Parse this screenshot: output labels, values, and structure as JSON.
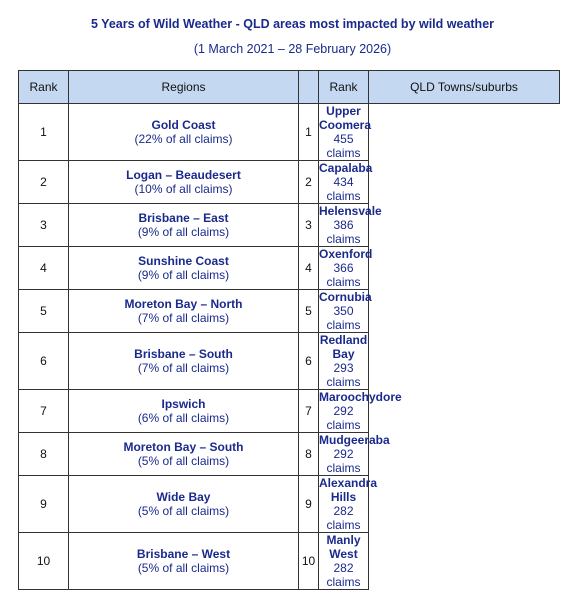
{
  "title": "5 Years of Wild Weather - QLD areas most impacted by wild weather",
  "subtitle": "(1 March 2021 – 28 February 2026)",
  "headers": {
    "rank_left": "Rank",
    "regions": "Regions",
    "rank_right": "Rank",
    "towns": "QLD Towns/suburbs"
  },
  "rows": [
    {
      "rank_left": "1",
      "region": "Gold Coast",
      "region_share": "(22% of all claims)",
      "rank_right": "1",
      "town": "Upper Coomera",
      "town_claims": "455 claims"
    },
    {
      "rank_left": "2",
      "region": "Logan – Beaudesert",
      "region_share": "(10% of all claims)",
      "rank_right": "2",
      "town": "Capalaba",
      "town_claims": "434 claims"
    },
    {
      "rank_left": "3",
      "region": "Brisbane – East",
      "region_share": "(9% of all claims)",
      "rank_right": "3",
      "town": "Helensvale",
      "town_claims": "386 claims"
    },
    {
      "rank_left": "4",
      "region": "Sunshine Coast",
      "region_share": "(9% of all claims)",
      "rank_right": "4",
      "town": "Oxenford",
      "town_claims": "366 claims"
    },
    {
      "rank_left": "5",
      "region": "Moreton Bay – North",
      "region_share": "(7% of all claims)",
      "rank_right": "5",
      "town": "Cornubia",
      "town_claims": "350 claims"
    },
    {
      "rank_left": "6",
      "region": "Brisbane – South",
      "region_share": "(7% of all claims)",
      "rank_right": "6",
      "town": "Redland Bay",
      "town_claims": "293 claims"
    },
    {
      "rank_left": "7",
      "region": "Ipswich",
      "region_share": "(6% of all claims)",
      "rank_right": "7",
      "town": "Maroochydore",
      "town_claims": "292 claims"
    },
    {
      "rank_left": "8",
      "region": "Moreton Bay – South",
      "region_share": "(5% of all claims)",
      "rank_right": "8",
      "town": "Mudgeeraba",
      "town_claims": "292 claims"
    },
    {
      "rank_left": "9",
      "region": "Wide Bay",
      "region_share": "(5% of all claims)",
      "rank_right": "9",
      "town": "Alexandra Hills",
      "town_claims": "282 claims"
    },
    {
      "rank_left": "10",
      "region": "Brisbane – West",
      "region_share": "(5% of all claims)",
      "rank_right": "10",
      "town": "Manly West",
      "town_claims": "282 claims"
    }
  ]
}
